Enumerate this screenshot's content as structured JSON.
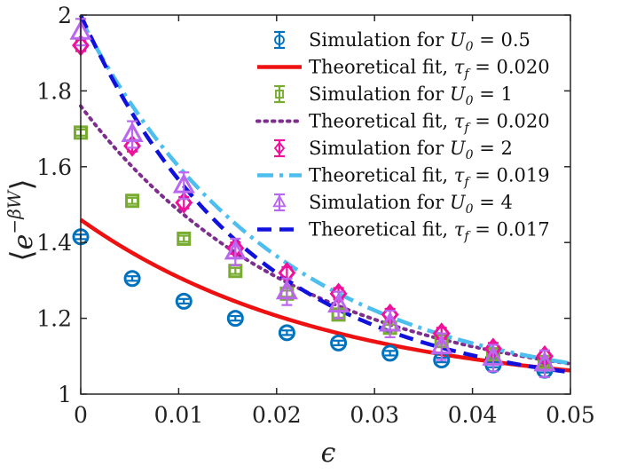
{
  "chart_data": {
    "type": "scatter",
    "xlabel": "ϵ",
    "ylabel": "⟨e^−βW⟩",
    "ylabel_parts": {
      "open": "⟨",
      "base": "e",
      "exp": "−βW",
      "close": "⟩"
    },
    "xlim": [
      0,
      0.05
    ],
    "ylim": [
      1,
      2
    ],
    "xticks": [
      0,
      0.01,
      0.02,
      0.03,
      0.04,
      0.05
    ],
    "xtick_labels": [
      "0",
      "0.01",
      "0.02",
      "0.03",
      "0.04",
      "0.05"
    ],
    "yticks": [
      1,
      1.2,
      1.4,
      1.6,
      1.8,
      2
    ],
    "ytick_labels": [
      "1",
      "1.2",
      "1.4",
      "1.6",
      "1.8",
      "2"
    ],
    "legend_position": "top-right",
    "x": [
      0,
      0.00526,
      0.01053,
      0.01579,
      0.02105,
      0.02632,
      0.03158,
      0.03684,
      0.04211,
      0.04737
    ],
    "series": [
      {
        "name": "Simulation for U0 = 0.5",
        "kind": "sim",
        "marker": "circle-bar",
        "color": "#0072BD",
        "label_pre": "Simulation for ",
        "label_var": "U",
        "label_sub": "0",
        "label_post": " = 0.5",
        "values": [
          1.415,
          1.305,
          1.245,
          1.2,
          1.162,
          1.135,
          1.108,
          1.09,
          1.077,
          1.063
        ],
        "error": 0.006
      },
      {
        "name": "Theoretical fit, tau_f = 0.020",
        "kind": "fit",
        "dash": "solid",
        "color": "#ee1111",
        "label_pre": "Theoretical fit, ",
        "label_var": "τ",
        "label_sub": "f",
        "label_post": " = 0.020",
        "fit": {
          "y0": 1.46,
          "k": 40
        }
      },
      {
        "name": "Simulation for U0 = 1",
        "kind": "sim",
        "marker": "square-bar",
        "color": "#77AC30",
        "label_pre": "Simulation for ",
        "label_var": "U",
        "label_sub": "0",
        "label_post": " = 1",
        "values": [
          1.69,
          1.51,
          1.41,
          1.325,
          1.265,
          1.21,
          1.175,
          1.14,
          1.105,
          1.085
        ],
        "error": 0.008
      },
      {
        "name": "Theoretical fit, tau_f = 0.020",
        "kind": "fit",
        "dash": "dot",
        "color": "#7E2F8E",
        "label_pre": "Theoretical fit, ",
        "label_var": "τ",
        "label_sub": "f",
        "label_post": " = 0.020",
        "fit": {
          "y0": 1.76,
          "k": 45
        }
      },
      {
        "name": "Simulation for U0 = 2",
        "kind": "sim",
        "marker": "diamond-bar",
        "color": "#ee1199",
        "label_pre": "Simulation for ",
        "label_var": "U",
        "label_sub": "0",
        "label_post": " = 2",
        "values": [
          1.92,
          1.655,
          1.505,
          1.385,
          1.32,
          1.265,
          1.21,
          1.16,
          1.12,
          1.1
        ],
        "error": 0.015
      },
      {
        "name": "Theoretical fit, tau_f = 0.019",
        "kind": "fit",
        "dash": "dashdot",
        "color": "#4DBEEE",
        "label_pre": "Theoretical fit, ",
        "label_var": "τ",
        "label_sub": "f",
        "label_post": " = 0.019",
        "fit": {
          "y0": 1.99,
          "k": 50
        }
      },
      {
        "name": "Simulation for U0 = 4",
        "kind": "sim",
        "marker": "triangle-bar",
        "color": "#bb66ee",
        "label_pre": "Simulation for ",
        "label_var": "U",
        "label_sub": "0",
        "label_post": " = 4",
        "values": [
          1.955,
          1.685,
          1.55,
          1.375,
          1.27,
          1.235,
          1.185,
          1.125,
          1.095,
          1.08
        ],
        "error": 0.035
      },
      {
        "name": "Theoretical fit, tau_f = 0.017",
        "kind": "fit",
        "dash": "dash",
        "color": "#1111dd",
        "label_pre": "Theoretical fit, ",
        "label_var": "τ",
        "label_sub": "f",
        "label_post": " = 0.017",
        "fit": {
          "y0": 2.0,
          "k": 57
        }
      }
    ]
  }
}
